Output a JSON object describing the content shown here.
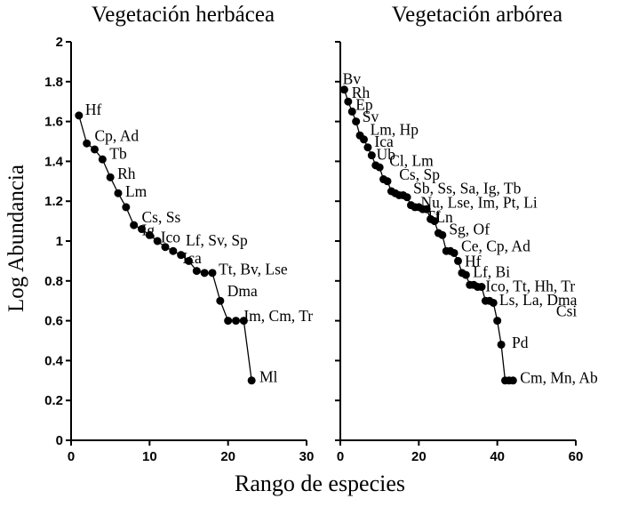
{
  "figure": {
    "x_axis_label": "Rango de especies",
    "y_axis_label": "Log Abundancia",
    "background": "#ffffff",
    "ink_color": "#000000"
  },
  "chart_data": [
    {
      "type": "line",
      "title": "Vegetación herbácea",
      "xlim": [
        0,
        30
      ],
      "ylim": [
        0,
        2
      ],
      "x_ticks": [
        0,
        10,
        20,
        30
      ],
      "y_ticks": [
        0,
        0.2,
        0.4,
        0.6,
        0.8,
        1,
        1.2,
        1.4,
        1.6,
        1.8,
        2
      ],
      "y_tick_labels": [
        "0",
        "0.2",
        "0.4",
        "0.6",
        "0.8",
        "1",
        "1.2",
        "1.4",
        "1.6",
        "1.8",
        "2"
      ],
      "show_y_tick_labels": true,
      "marker": "circle",
      "color": "#000000",
      "x": [
        1,
        2,
        3,
        4,
        5,
        6,
        7,
        8,
        9,
        10,
        11,
        12,
        13,
        14,
        15,
        16,
        17,
        18,
        19,
        20,
        21,
        22,
        23
      ],
      "y": [
        1.63,
        1.49,
        1.46,
        1.41,
        1.32,
        1.24,
        1.17,
        1.08,
        1.06,
        1.03,
        1.0,
        0.97,
        0.95,
        0.93,
        0.9,
        0.85,
        0.84,
        0.84,
        0.7,
        0.6,
        0.6,
        0.6,
        0.3
      ],
      "annotations": [
        {
          "label": "Hf",
          "x": 1.8,
          "y": 1.66
        },
        {
          "label": "Cp, Ad",
          "x": 3.0,
          "y": 1.53
        },
        {
          "label": "Tb",
          "x": 4.9,
          "y": 1.44
        },
        {
          "label": "Rh",
          "x": 5.9,
          "y": 1.34
        },
        {
          "label": "Lm",
          "x": 6.9,
          "y": 1.25
        },
        {
          "label": "Cs, Ss",
          "x": 9.0,
          "y": 1.12
        },
        {
          "label": "Ig",
          "x": 9.0,
          "y": 1.055
        },
        {
          "label": "Ico",
          "x": 11.4,
          "y": 1.02
        },
        {
          "label": "Lf, Sv, Sp",
          "x": 14.6,
          "y": 1.005
        },
        {
          "label": "Ica",
          "x": 14.2,
          "y": 0.915
        },
        {
          "label": "Tt, Bv, Lse",
          "x": 18.8,
          "y": 0.86
        },
        {
          "label": "Dma",
          "x": 19.9,
          "y": 0.75
        },
        {
          "label": "Im, Cm, Tr",
          "x": 22.0,
          "y": 0.625
        },
        {
          "label": "Ml",
          "x": 24.0,
          "y": 0.32
        }
      ]
    },
    {
      "type": "line",
      "title": "Vegetación arbórea",
      "xlim": [
        0,
        60
      ],
      "ylim": [
        0,
        2
      ],
      "x_ticks": [
        0,
        20,
        40,
        60
      ],
      "y_ticks": [
        0,
        0.2,
        0.4,
        0.6,
        0.8,
        1,
        1.2,
        1.4,
        1.6,
        1.8,
        2
      ],
      "y_tick_labels": [
        "0",
        "0.2",
        "0.4",
        "0.6",
        "0.8",
        "1",
        "1.2",
        "1.4",
        "1.6",
        "1.8",
        "2"
      ],
      "show_y_tick_labels": false,
      "marker": "circle",
      "color": "#000000",
      "x": [
        1,
        2,
        3,
        4,
        5,
        6,
        7,
        8,
        9,
        10,
        11,
        12,
        13,
        14,
        15,
        16,
        17,
        18,
        19,
        20,
        21,
        22,
        23,
        24,
        25,
        26,
        27,
        28,
        29,
        30,
        31,
        32,
        33,
        34,
        35,
        36,
        37,
        38,
        39,
        40,
        41,
        42,
        43,
        44
      ],
      "y": [
        1.76,
        1.7,
        1.65,
        1.6,
        1.53,
        1.51,
        1.47,
        1.43,
        1.38,
        1.37,
        1.31,
        1.3,
        1.25,
        1.24,
        1.23,
        1.23,
        1.22,
        1.18,
        1.17,
        1.17,
        1.16,
        1.16,
        1.11,
        1.1,
        1.04,
        1.03,
        0.95,
        0.95,
        0.94,
        0.9,
        0.84,
        0.83,
        0.78,
        0.78,
        0.77,
        0.77,
        0.7,
        0.7,
        0.69,
        0.6,
        0.48,
        0.3,
        0.3,
        0.3
      ],
      "annotations": [
        {
          "label": "Bv",
          "x": 0.6,
          "y": 1.815
        },
        {
          "label": "Rh",
          "x": 2.9,
          "y": 1.745
        },
        {
          "label": "Ep",
          "x": 3.9,
          "y": 1.685
        },
        {
          "label": "Sv",
          "x": 5.6,
          "y": 1.625
        },
        {
          "label": "Lm, Hp",
          "x": 7.6,
          "y": 1.56
        },
        {
          "label": "Ica",
          "x": 8.7,
          "y": 1.5
        },
        {
          "label": "Ub",
          "x": 9.2,
          "y": 1.435
        },
        {
          "label": "Cl, Lm",
          "x": 12.5,
          "y": 1.405
        },
        {
          "label": "Cs, Sp",
          "x": 15.0,
          "y": 1.335
        },
        {
          "label": "Sb, Ss, Sa, Ig, Tb",
          "x": 18.6,
          "y": 1.265
        },
        {
          "label": "Nu, Lse, Im, Pt, Li",
          "x": 20.5,
          "y": 1.195
        },
        {
          "label": "Tf",
          "x": 21.7,
          "y": 1.125
        },
        {
          "label": "Ln",
          "x": 24.3,
          "y": 1.12
        },
        {
          "label": "Sg, Of",
          "x": 27.7,
          "y": 1.06
        },
        {
          "label": "Ce, Cp, Ad",
          "x": 30.8,
          "y": 0.975
        },
        {
          "label": "Hf",
          "x": 31.7,
          "y": 0.9
        },
        {
          "label": "Lf, Bi",
          "x": 33.8,
          "y": 0.845
        },
        {
          "label": "Ico, Tt, Hh, Tr",
          "x": 37.0,
          "y": 0.775
        },
        {
          "label": "Ls, La, Dma",
          "x": 40.5,
          "y": 0.705
        },
        {
          "label": "Csi",
          "x": 55.0,
          "y": 0.65
        },
        {
          "label": "Pd",
          "x": 43.7,
          "y": 0.49
        },
        {
          "label": "Cm, Mn, Ab",
          "x": 45.8,
          "y": 0.315
        }
      ]
    }
  ]
}
